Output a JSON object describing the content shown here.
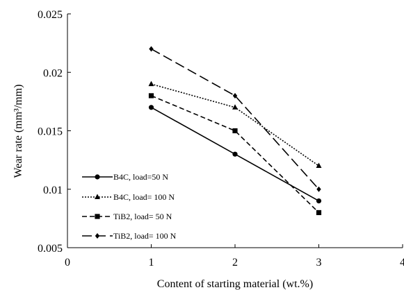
{
  "chart_data": {
    "type": "line",
    "title": "",
    "xlabel": "Content of starting material (wt.%)",
    "ylabel": "Wear rate (mm³/mm)",
    "xlim": [
      0,
      4
    ],
    "ylim": [
      0.005,
      0.025
    ],
    "x_ticks": [
      "0",
      "1",
      "2",
      "3",
      "4"
    ],
    "y_ticks": [
      "0.005",
      "0.01",
      "0.015",
      "0.02",
      "0.025"
    ],
    "grid": false,
    "legend_position": "left",
    "x": [
      1,
      2,
      3
    ],
    "series": [
      {
        "name": "B4C, load=50 N",
        "values": [
          0.017,
          0.013,
          0.009
        ],
        "marker": "circle",
        "line_style": "solid",
        "color": "#000000"
      },
      {
        "name": "B4C, load= 100 N",
        "values": [
          0.019,
          0.017,
          0.012
        ],
        "marker": "triangle",
        "line_style": "dotted",
        "color": "#000000"
      },
      {
        "name": "TiB2, load= 50 N",
        "values": [
          0.018,
          0.015,
          0.008
        ],
        "marker": "square",
        "line_style": "dashed",
        "color": "#000000"
      },
      {
        "name": "TiB2, load= 100 N",
        "values": [
          0.022,
          0.018,
          0.01
        ],
        "marker": "diamond",
        "line_style": "long-dash",
        "color": "#000000"
      }
    ]
  }
}
